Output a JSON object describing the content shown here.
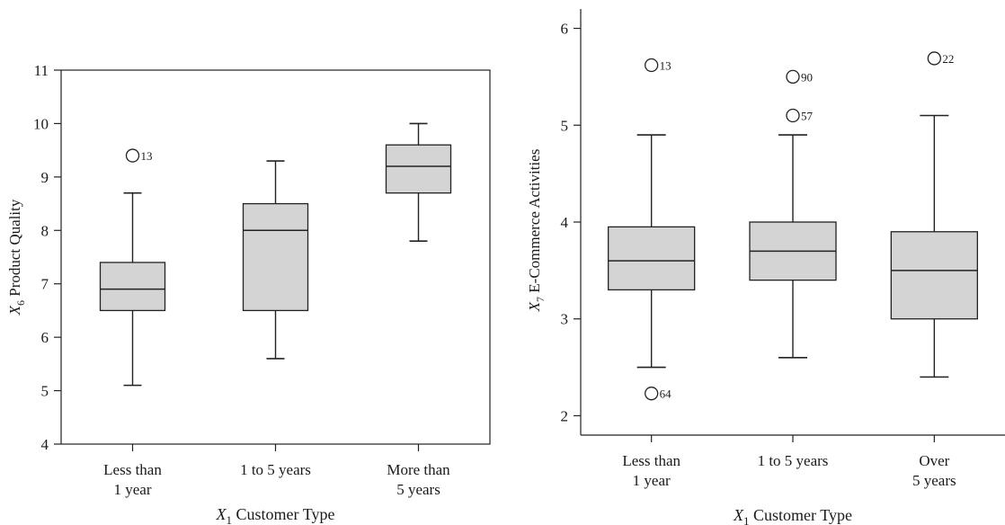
{
  "chart_data": [
    {
      "type": "boxplot",
      "xlabel_var": "X",
      "xlabel_sub": "1",
      "xlabel_text": " Customer Type",
      "ylabel_var": "X",
      "ylabel_sub": "6",
      "ylabel_text": " Product Quality",
      "ylim": [
        4,
        11
      ],
      "yticks": [
        "4",
        "5",
        "6",
        "7",
        "8",
        "9",
        "10",
        "11"
      ],
      "frame": "full",
      "categories": [
        {
          "line1": "Less than",
          "line2": "1 year"
        },
        {
          "line1": "1 to 5 years",
          "line2": ""
        },
        {
          "line1": "More than",
          "line2": "5 years"
        }
      ],
      "boxes": [
        {
          "min": 5.1,
          "q1": 6.5,
          "median": 6.9,
          "q3": 7.4,
          "max": 8.7,
          "outliers": [
            {
              "value": 9.4,
              "label": "13"
            }
          ]
        },
        {
          "min": 5.6,
          "q1": 6.5,
          "median": 8.0,
          "q3": 8.5,
          "max": 9.3,
          "outliers": []
        },
        {
          "min": 7.8,
          "q1": 8.7,
          "median": 9.2,
          "q3": 9.6,
          "max": 10.0,
          "outliers": []
        }
      ]
    },
    {
      "type": "boxplot",
      "xlabel_var": "X",
      "xlabel_sub": "1",
      "xlabel_text": " Customer Type",
      "ylabel_var": "X",
      "ylabel_sub": "7",
      "ylabel_text": " E-Commerce Activities",
      "ylim": [
        1.8,
        6.2
      ],
      "yticks": [
        "2",
        "3",
        "4",
        "5",
        "6"
      ],
      "frame": "open",
      "categories": [
        {
          "line1": "Less than",
          "line2": "1 year"
        },
        {
          "line1": "1 to 5 years",
          "line2": ""
        },
        {
          "line1": "Over",
          "line2": "5 years"
        }
      ],
      "boxes": [
        {
          "min": 2.5,
          "q1": 3.3,
          "median": 3.6,
          "q3": 3.95,
          "max": 4.9,
          "outliers": [
            {
              "value": 5.62,
              "label": "13"
            },
            {
              "value": 2.23,
              "label": "64"
            }
          ]
        },
        {
          "min": 2.6,
          "q1": 3.4,
          "median": 3.7,
          "q3": 4.0,
          "max": 4.9,
          "outliers": [
            {
              "value": 5.5,
              "label": "90"
            },
            {
              "value": 5.1,
              "label": "57"
            }
          ]
        },
        {
          "min": 2.4,
          "q1": 3.0,
          "median": 3.5,
          "q3": 3.9,
          "max": 5.1,
          "outliers": [
            {
              "value": 5.69,
              "label": "22"
            }
          ]
        }
      ]
    }
  ]
}
